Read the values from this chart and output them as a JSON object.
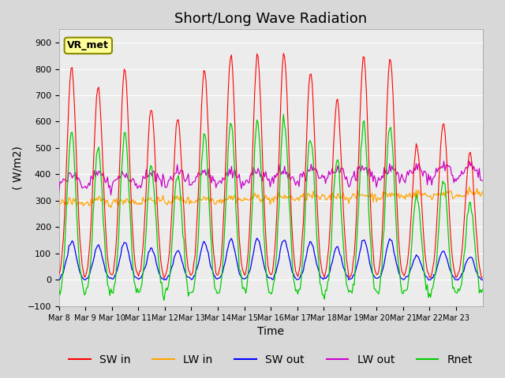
{
  "title": "Short/Long Wave Radiation",
  "ylabel": "( W/m2)",
  "xlabel": "Time",
  "ylim": [
    -100,
    950
  ],
  "yticks": [
    -100,
    0,
    100,
    200,
    300,
    400,
    500,
    600,
    700,
    800,
    900
  ],
  "x_labels": [
    "Mar 8",
    "Mar 9",
    "Mar 10",
    "Mar 11",
    "Mar 12",
    "Mar 13",
    "Mar 14",
    "Mar 15",
    "Mar 16",
    "Mar 17",
    "Mar 18",
    "Mar 19",
    "Mar 20",
    "Mar 21",
    "Mar 22",
    "Mar 23"
  ],
  "station_label": "VR_met",
  "colors": {
    "SW_in": "#ff0000",
    "LW_in": "#ffa500",
    "SW_out": "#0000ff",
    "LW_out": "#cc00cc",
    "Rnet": "#00cc00"
  },
  "fig_bg_color": "#d8d8d8",
  "plot_bg_color": "#ececec",
  "n_days": 16,
  "title_fontsize": 13,
  "legend_fontsize": 10,
  "axis_fontsize": 10,
  "SW_in_peaks": [
    810,
    735,
    800,
    650,
    610,
    800,
    850,
    850,
    860,
    790,
    680,
    850,
    840,
    510,
    600,
    480
  ]
}
